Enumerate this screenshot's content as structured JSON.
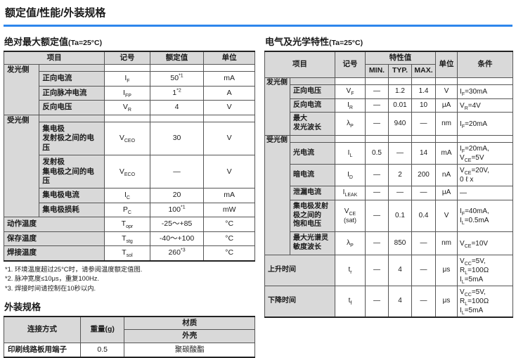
{
  "title": "额定值/性能/外装规格",
  "colors": {
    "accent_line": "#2e86ec",
    "header_bg": "#d9d9d9",
    "grid": "#555"
  },
  "abs_max": {
    "heading": "绝对最大额定值",
    "condition": "(Ta=25°C)",
    "columns": {
      "item": "项目",
      "symbol": "记号",
      "rating": "额定值",
      "unit": "单位"
    },
    "rows": [
      {
        "type": "section",
        "label": "发光侧"
      },
      {
        "type": "item",
        "label": "正向电流",
        "sym": {
          "b": "I",
          "s": "F"
        },
        "val": {
          "t": "50",
          "sup": "*1"
        },
        "unit": "mA"
      },
      {
        "type": "item",
        "label": "正向脉冲电流",
        "sym": {
          "b": "I",
          "s": "FP"
        },
        "val": {
          "t": "1",
          "sup": "*2"
        },
        "unit": "A"
      },
      {
        "type": "item",
        "label": "反向电压",
        "sym": {
          "b": "V",
          "s": "R"
        },
        "val": {
          "t": "4"
        },
        "unit": "V"
      },
      {
        "type": "section",
        "label": "受光侧"
      },
      {
        "type": "item",
        "label": "集电极\n发射极之间的电\n压",
        "sym": {
          "b": "V",
          "s": "CEO"
        },
        "val": {
          "t": "30"
        },
        "unit": "V"
      },
      {
        "type": "item",
        "label": "发射极\n集电极之间的电\n压",
        "sym": {
          "b": "V",
          "s": "ECO"
        },
        "val": {
          "t": "—"
        },
        "unit": "V"
      },
      {
        "type": "item",
        "label": "集电极电流",
        "sym": {
          "b": "I",
          "s": "C"
        },
        "val": {
          "t": "20"
        },
        "unit": "mA"
      },
      {
        "type": "item",
        "label": "集电极损耗",
        "sym": {
          "b": "P",
          "s": "C"
        },
        "val": {
          "t": "100",
          "sup": "*1"
        },
        "unit": "mW"
      },
      {
        "type": "full",
        "label": "动作温度",
        "sym": {
          "b": "T",
          "s": "opr"
        },
        "val": {
          "t": "-25～+85"
        },
        "unit": "°C"
      },
      {
        "type": "full",
        "label": "保存温度",
        "sym": {
          "b": "T",
          "s": "stg"
        },
        "val": {
          "t": "-40～+100"
        },
        "unit": "°C"
      },
      {
        "type": "full",
        "label": "焊接温度",
        "sym": {
          "b": "T",
          "s": "sol"
        },
        "val": {
          "t": "260",
          "sup": "*3"
        },
        "unit": "°C"
      }
    ],
    "footnotes": [
      "*1. 环境温度超过25°C时，请参阅温度额定值图.",
      "*2. 脉冲宽度≤10μs，重复100Hz.",
      "*3. 焊接时间请控制在10秒以内."
    ]
  },
  "elec_opt": {
    "heading": "电气及光学特性",
    "condition": "(Ta=25°C)",
    "columns": {
      "item": "项目",
      "symbol": "记号",
      "char": "特性值",
      "min": "MIN.",
      "typ": "TYP.",
      "max": "MAX.",
      "unit": "单位",
      "cond": "条件"
    },
    "rows": [
      {
        "type": "section",
        "label": "发光侧"
      },
      {
        "type": "item",
        "label": "正向电压",
        "sym": {
          "b": "V",
          "s": "F"
        },
        "min": "—",
        "typ": "1.2",
        "max": "1.4",
        "unit": "V",
        "cond": [
          [
            {
              "b": "I",
              "s": "F",
              "r": "=30mA"
            }
          ]
        ]
      },
      {
        "type": "item",
        "label": "反向电流",
        "sym": {
          "b": "I",
          "s": "R"
        },
        "min": "—",
        "typ": "0.01",
        "max": "10",
        "unit": "μA",
        "cond": [
          [
            {
              "b": "V",
              "s": "R",
              "r": "=4V"
            }
          ]
        ]
      },
      {
        "type": "item",
        "label": "最大\n发光波长",
        "sym": {
          "b": "λ",
          "s": "P"
        },
        "min": "—",
        "typ": "940",
        "max": "—",
        "unit": "nm",
        "cond": [
          [
            {
              "b": "I",
              "s": "F",
              "r": "=20mA"
            }
          ]
        ]
      },
      {
        "type": "section",
        "label": "受光侧"
      },
      {
        "type": "item",
        "label": "光电流",
        "sym": {
          "b": "I",
          "s": "L"
        },
        "min": "0.5",
        "typ": "—",
        "max": "14",
        "unit": "mA",
        "cond": [
          [
            {
              "b": "I",
              "s": "F",
              "r": "=20mA,"
            }
          ],
          [
            {
              "b": "V",
              "s": "CE",
              "r": "=5V"
            }
          ]
        ]
      },
      {
        "type": "item",
        "label": "暗电流",
        "sym": {
          "b": "I",
          "s": "D"
        },
        "min": "—",
        "typ": "2",
        "max": "200",
        "unit": "nA",
        "cond": [
          [
            {
              "b": "V",
              "s": "CE",
              "r": "=20V,"
            }
          ],
          [
            {
              "t": "0 ℓ x"
            }
          ]
        ]
      },
      {
        "type": "item",
        "label": "泄漏电流",
        "sym": {
          "b": "I",
          "s": "LEAK"
        },
        "min": "—",
        "typ": "—",
        "max": "—",
        "unit": "μA",
        "cond": [
          [
            {
              "t": "—"
            }
          ]
        ]
      },
      {
        "type": "item",
        "label": "集电极发射\n极之间的\n饱和电压",
        "sym": {
          "b": "V",
          "s": "CE",
          "n": "(sat)"
        },
        "min": "—",
        "typ": "0.1",
        "max": "0.4",
        "unit": "V",
        "cond": [
          [
            {
              "b": "I",
              "s": "F",
              "r": "=40mA,"
            }
          ],
          [
            {
              "b": "I",
              "s": "L",
              "r": "=0.5mA"
            }
          ]
        ]
      },
      {
        "type": "item",
        "label": "最大光谱灵\n敏度波长",
        "sym": {
          "b": "λ",
          "s": "P"
        },
        "min": "—",
        "typ": "850",
        "max": "—",
        "unit": "nm",
        "cond": [
          [
            {
              "b": "V",
              "s": "CE",
              "r": "=10V"
            }
          ]
        ]
      },
      {
        "type": "full",
        "label": "上升时间",
        "sym": {
          "b": "t",
          "s": "r"
        },
        "min": "—",
        "typ": "4",
        "max": "—",
        "unit": "μs",
        "cond": [
          [
            {
              "b": "V",
              "s": "CC",
              "r": "=5V,"
            }
          ],
          [
            {
              "b": "R",
              "s": "L",
              "r": "=100Ω"
            }
          ],
          [
            {
              "b": "I",
              "s": "L",
              "r": "=5mA"
            }
          ]
        ]
      },
      {
        "type": "full",
        "label": "下降时间",
        "sym": {
          "b": "t",
          "s": "f"
        },
        "min": "—",
        "typ": "4",
        "max": "—",
        "unit": "μs",
        "cond": [
          [
            {
              "b": "V",
              "s": "CC",
              "r": "=5V,"
            }
          ],
          [
            {
              "b": "R",
              "s": "L",
              "r": "=100Ω"
            }
          ],
          [
            {
              "b": "I",
              "s": "L",
              "r": "=5mA"
            }
          ]
        ]
      }
    ]
  },
  "external": {
    "heading": "外装规格",
    "columns": {
      "connection": "连接方式",
      "weight": "重量(g)",
      "material": "材质",
      "case": "外壳"
    },
    "row": {
      "connection": "印刷线路板用端子",
      "weight": "0.5",
      "case_material": "聚碳酸酯"
    }
  }
}
